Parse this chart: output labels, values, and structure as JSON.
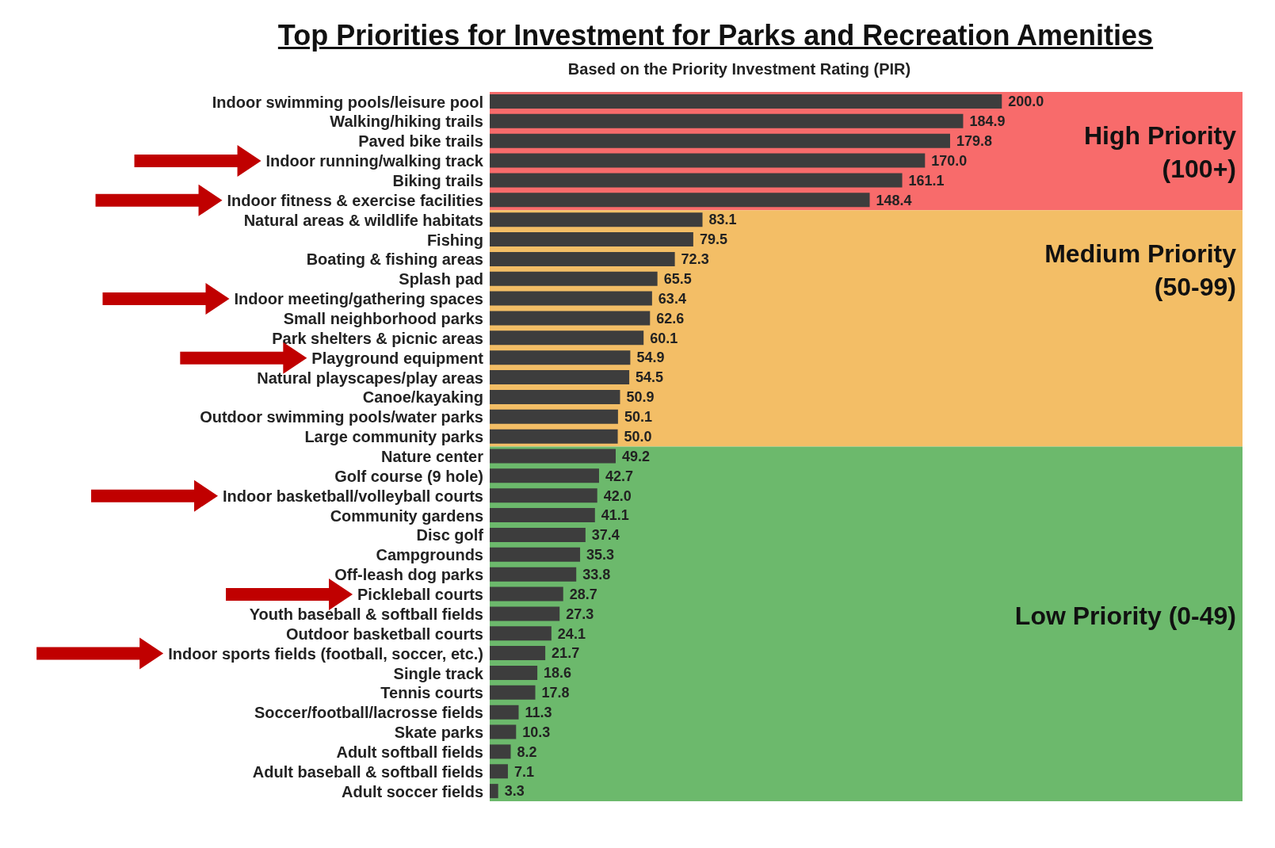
{
  "chart_data": {
    "type": "bar",
    "orientation": "horizontal",
    "title": "Top Priorities for Investment for Parks and Recreation Amenities",
    "subtitle": "Based on the Priority Investment Rating (PIR)",
    "categories": [
      "Indoor swimming pools/leisure pool",
      "Walking/hiking trails",
      "Paved bike trails",
      "Indoor running/walking track",
      "Biking trails",
      "Indoor fitness & exercise facilities",
      "Natural areas & wildlife habitats",
      "Fishing",
      "Boating & fishing areas",
      "Splash pad",
      "Indoor meeting/gathering spaces",
      "Small neighborhood parks",
      "Park shelters & picnic areas",
      "Playground equipment",
      "Natural playscapes/play areas",
      "Canoe/kayaking",
      "Outdoor swimming pools/water parks",
      "Large community parks",
      "Nature center",
      "Golf course (9 hole)",
      "Indoor basketball/volleyball courts",
      "Community gardens",
      "Disc golf",
      "Campgrounds",
      "Off-leash dog parks",
      "Pickleball courts",
      "Youth baseball & softball fields",
      "Outdoor basketball courts",
      "Indoor sports fields (football, soccer, etc.)",
      "Single track",
      "Tennis courts",
      "Soccer/football/lacrosse fields",
      "Skate parks",
      "Adult softball fields",
      "Adult baseball & softball fields",
      "Adult soccer fields"
    ],
    "values": [
      200.0,
      184.9,
      179.8,
      170.0,
      161.1,
      148.4,
      83.1,
      79.5,
      72.3,
      65.5,
      63.4,
      62.6,
      60.1,
      54.9,
      54.5,
      50.9,
      50.1,
      50.0,
      49.2,
      42.7,
      42.0,
      41.1,
      37.4,
      35.3,
      33.8,
      28.7,
      27.3,
      24.1,
      21.7,
      18.6,
      17.8,
      11.3,
      10.3,
      8.2,
      7.1,
      3.3
    ],
    "value_labels": [
      "200.0",
      "184.9",
      "179.8",
      "170.0",
      "161.1",
      "148.4",
      "83.1",
      "79.5",
      "72.3",
      "65.5",
      "63.4",
      "62.6",
      "60.1",
      "54.9",
      "54.5",
      "50.9",
      "50.1",
      "50.0",
      "49.2",
      "42.7",
      "42.0",
      "41.1",
      "37.4",
      "35.3",
      "33.8",
      "28.7",
      "27.3",
      "24.1",
      "21.7",
      "18.6",
      "17.8",
      "11.3",
      "10.3",
      "8.2",
      "7.1",
      "3.3"
    ],
    "color": "#3d3d3d",
    "bands": [
      {
        "axis": "y",
        "from": "Indoor swimming pools/leisure pool",
        "to": "Indoor fitness & exercise facilities",
        "label": "High Priority\n(100+)",
        "color": "#f86b6b"
      },
      {
        "axis": "y",
        "from": "Natural areas & wildlife habitats",
        "to": "Large community parks",
        "label": "Medium Priority\n(50-99)",
        "color": "#f3be66"
      },
      {
        "axis": "y",
        "from": "Nature center",
        "to": "Adult soccer fields",
        "label": "Low Priority (0-49)",
        "color": "#6cb96c"
      }
    ]
  }
}
